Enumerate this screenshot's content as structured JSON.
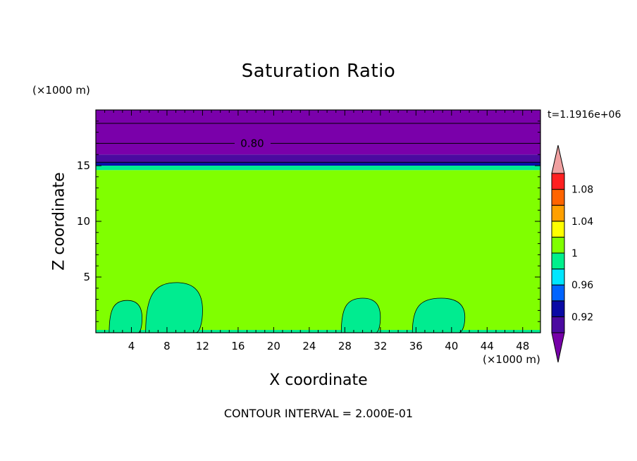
{
  "chart_data": {
    "type": "heatmap",
    "title": "Saturation Ratio",
    "xlabel": "X coordinate",
    "ylabel": "Z coordinate",
    "x_unit": "(×1000 m)",
    "y_unit": "(×1000 m)",
    "time_label": "t=1.1916e+06",
    "footer": "CONTOUR INTERVAL = 2.000E-01",
    "xlim": [
      0,
      50
    ],
    "ylim": [
      0,
      20
    ],
    "x_ticks": [
      4,
      8,
      12,
      16,
      20,
      24,
      28,
      32,
      36,
      40,
      44,
      48
    ],
    "y_ticks": [
      5,
      10,
      15
    ],
    "contour_line_label": "0.80",
    "contour_lines_z": [
      18.8,
      17,
      15.3
    ],
    "layers": [
      {
        "z0": 0,
        "z1": 14.6,
        "level": "1"
      },
      {
        "z0": 14.6,
        "z1": 15.0,
        "level": "0.98"
      },
      {
        "z0": 15.0,
        "z1": 15.3,
        "level": "0.92"
      },
      {
        "z0": 15.3,
        "z1": 16.0,
        "level": "0.90"
      },
      {
        "z0": 16.0,
        "z1": 20.0,
        "level": "below"
      }
    ],
    "cloud_blobs": [
      {
        "x0": 1.5,
        "x1": 5.2,
        "top": 2.9
      },
      {
        "x0": 5.6,
        "x1": 12.0,
        "top": 4.5
      },
      {
        "x0": 27.6,
        "x1": 32.0,
        "top": 3.1
      },
      {
        "x0": 35.6,
        "x1": 41.5,
        "top": 3.1
      }
    ],
    "colorbar": {
      "colors": [
        "#7600a8",
        "#4b0aa0",
        "#0a0aa5",
        "#0064ff",
        "#00e6ff",
        "#00f08c",
        "#80ff00",
        "#ffff00",
        "#ffa000",
        "#ff6400",
        "#ff2020",
        "#f0a0a0"
      ],
      "tick_labels": [
        "0.92",
        "0.96",
        "1",
        "1.04",
        "1.08"
      ]
    }
  }
}
